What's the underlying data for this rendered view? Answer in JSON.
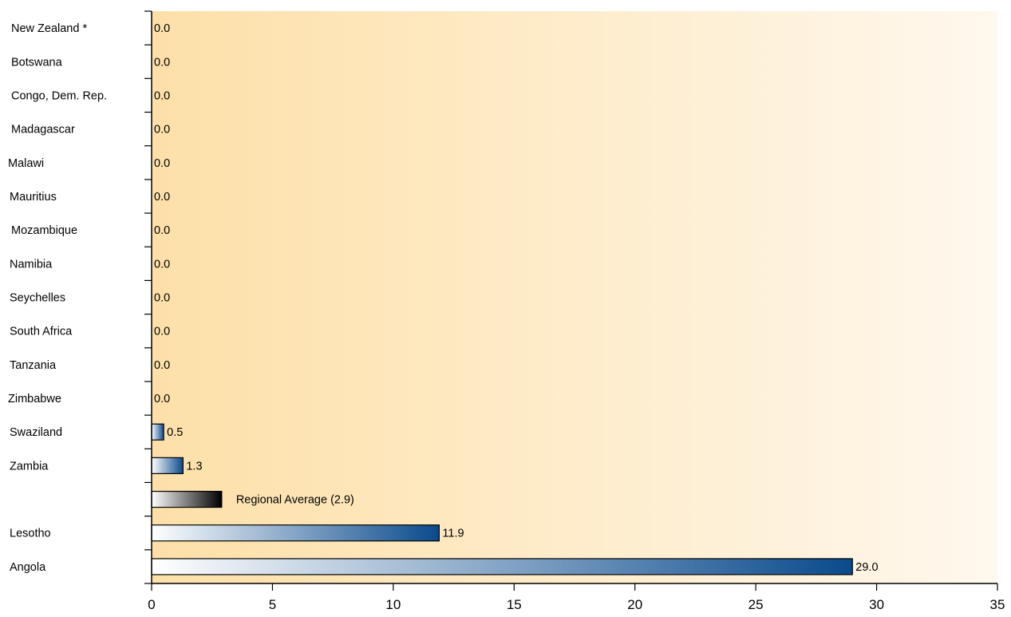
{
  "chart_data": {
    "type": "bar",
    "orientation": "horizontal",
    "title": "",
    "xlabel": "",
    "ylabel": "",
    "xlim": [
      0,
      35
    ],
    "x_ticks": [
      "0",
      "5",
      "10",
      "15",
      "20",
      "25",
      "30",
      "35"
    ],
    "grid": false,
    "legend": "none",
    "categories": [
      "New Zealand *",
      "Botswana",
      "Congo, Dem. Rep.",
      "Madagascar",
      "Malawi",
      "Mauritius",
      "Mozambique",
      "Namibia",
      "Seychelles",
      "South Africa",
      "Tanzania",
      "Zimbabwe",
      "Swaziland",
      "Zambia",
      "",
      "Lesotho",
      "Angola"
    ],
    "values": [
      0.0,
      0.0,
      0.0,
      0.0,
      0.0,
      0.0,
      0.0,
      0.0,
      0.0,
      0.0,
      0.0,
      0.0,
      0.5,
      1.3,
      2.9,
      11.9,
      29.0
    ],
    "value_labels": [
      "0.0",
      "0.0",
      "0.0",
      "0.0",
      "0.0",
      "0.0",
      "0.0",
      "0.0",
      "0.0",
      "0.0",
      "0.0",
      "0.0",
      "0.5",
      "1.3",
      "Regional Average (2.9)",
      "11.9",
      "29.0"
    ],
    "highlight_index": 14,
    "colors": {
      "bar_start": "#ffffff",
      "bar_end": "#0a4a8c",
      "highlight_start": "#ffffff",
      "highlight_end": "#000000",
      "background_start": "#fde0a8",
      "background_end": "#fff8ee",
      "axis": "#000000"
    }
  }
}
